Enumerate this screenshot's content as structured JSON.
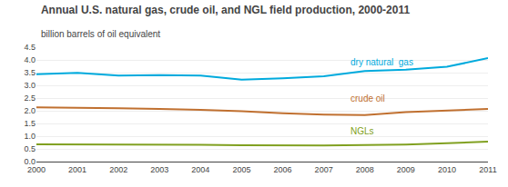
{
  "chart_data": {
    "type": "line",
    "title": "Annual U.S. natural gas, crude oil, and NGL field production, 2000-2011",
    "subtitle": "billion barrels of oil equivalent",
    "x": [
      2000,
      2001,
      2002,
      2003,
      2004,
      2005,
      2006,
      2007,
      2008,
      2009,
      2010,
      2011
    ],
    "series": [
      {
        "name": "dry natural  gas",
        "color": "#00aadd",
        "values": [
          3.44,
          3.49,
          3.38,
          3.4,
          3.38,
          3.22,
          3.28,
          3.36,
          3.56,
          3.62,
          3.73,
          4.07
        ]
      },
      {
        "name": "crude oil",
        "color": "#c07030",
        "values": [
          2.13,
          2.12,
          2.1,
          2.07,
          2.04,
          1.98,
          1.9,
          1.85,
          1.83,
          1.95,
          2.0,
          2.07
        ]
      },
      {
        "name": "NGLs",
        "color": "#80a020",
        "values": [
          0.68,
          0.68,
          0.66,
          0.66,
          0.66,
          0.64,
          0.63,
          0.63,
          0.65,
          0.67,
          0.72,
          0.79
        ]
      }
    ],
    "annotations": [
      {
        "text": "dry natural  gas",
        "x": 2007.6,
        "y": 3.65,
        "color": "#00aadd"
      },
      {
        "text": "crude oil",
        "x": 2007.6,
        "y": 2.2,
        "color": "#c07030"
      },
      {
        "text": "NGLs",
        "x": 2007.6,
        "y": 0.93,
        "color": "#80a020"
      }
    ],
    "xlim": [
      2000,
      2011
    ],
    "xticks": [
      2000,
      2001,
      2002,
      2003,
      2004,
      2005,
      2006,
      2007,
      2008,
      2009,
      2010,
      2011
    ],
    "ylim": [
      0.0,
      4.5
    ],
    "yticks": [
      {
        "value": 0.0,
        "label": "0.0"
      },
      0.5,
      {
        "value": 1.0,
        "label": "1.0"
      },
      1.5,
      {
        "value": 2.0,
        "label": "2.0"
      },
      2.5,
      {
        "value": 3.0,
        "label": "3.0"
      },
      3.5,
      {
        "value": 4.0,
        "label": "4.0"
      },
      4.5
    ],
    "grid": true
  }
}
